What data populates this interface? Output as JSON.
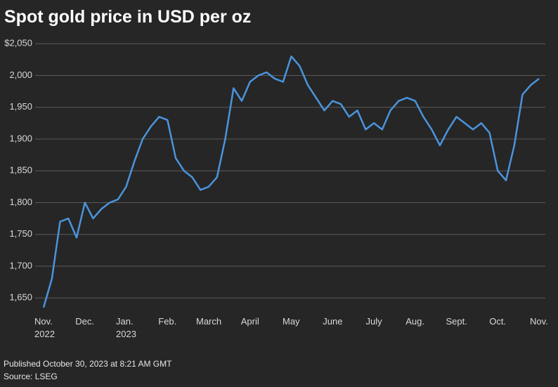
{
  "chart_data": {
    "type": "line",
    "title": "Spot gold price in USD per oz",
    "footnote": "Published October 30, 2023 at 8:21 AM GMT",
    "source": "Source: LSEG",
    "categories": [
      "Nov.\n2022",
      null,
      null,
      null,
      null,
      "Dec.",
      null,
      null,
      null,
      null,
      "Jan.\n2023",
      null,
      null,
      null,
      null,
      "Feb.",
      null,
      null,
      null,
      null,
      "March",
      null,
      null,
      null,
      null,
      "April",
      null,
      null,
      null,
      null,
      "May",
      null,
      null,
      null,
      null,
      "June",
      null,
      null,
      null,
      null,
      "July",
      null,
      null,
      null,
      null,
      "Aug.",
      null,
      null,
      null,
      null,
      "Sept.",
      null,
      null,
      null,
      null,
      "Oct.",
      null,
      null,
      null,
      null,
      "Nov."
    ],
    "values": [
      1635,
      1680,
      1770,
      1775,
      1745,
      1800,
      1775,
      1790,
      1800,
      1805,
      1825,
      1865,
      1900,
      1920,
      1935,
      1930,
      1870,
      1850,
      1840,
      1820,
      1825,
      1840,
      1900,
      1980,
      1960,
      1990,
      2000,
      2005,
      1995,
      1990,
      2030,
      2015,
      1985,
      1965,
      1945,
      1960,
      1955,
      1935,
      1945,
      1915,
      1925,
      1915,
      1945,
      1960,
      1965,
      1960,
      1935,
      1915,
      1890,
      1915,
      1935,
      1925,
      1915,
      1925,
      1910,
      1850,
      1835,
      1890,
      1970,
      1985,
      1995
    ],
    "color": "#4a94dc",
    "ylim": [
      1627,
      2058
    ],
    "yticks": [
      {
        "value": 1650,
        "label": "1,650"
      },
      {
        "value": 1700,
        "label": "1,700"
      },
      {
        "value": 1750,
        "label": "1,750"
      },
      {
        "value": 1800,
        "label": "1,800"
      },
      {
        "value": 1850,
        "label": "1,850"
      },
      {
        "value": 1900,
        "label": "1,900"
      },
      {
        "value": 1950,
        "label": "1,950"
      },
      {
        "value": 2000,
        "label": "2,000"
      },
      {
        "value": 2050,
        "label": "$2,050"
      }
    ],
    "grid": true
  }
}
